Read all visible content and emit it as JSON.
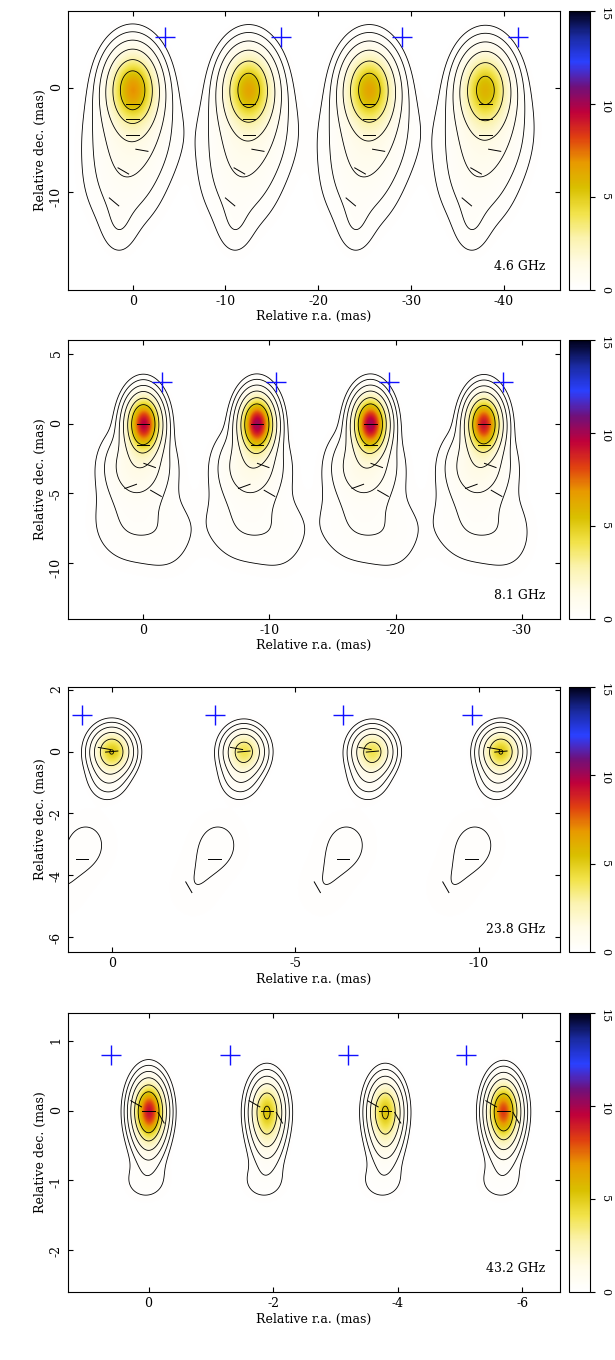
{
  "chart_data": {
    "type": "image",
    "xlabel": "Relative r.a. (mas)",
    "ylabel": "Relative dec. (mas)",
    "colorbar": {
      "lim": [
        0,
        15
      ],
      "ticks": [
        0,
        5,
        10,
        15
      ],
      "colors": [
        "#ffffff",
        "#fffbe6",
        "#fbf3b0",
        "#f2e34a",
        "#d9c000",
        "#e89a00",
        "#e04010",
        "#c0003a",
        "#70107a",
        "#2a40ff",
        "#1a2aa0",
        "#000018"
      ]
    },
    "contour_levels": [
      0.12,
      0.3,
      0.7,
      1.5,
      3,
      5
    ],
    "cross_color": "#1010ff",
    "panels": [
      {
        "label": "4.6 GHz",
        "xlim": [
          7,
          -46
        ],
        "ylim": [
          -19.5,
          7.5
        ],
        "xticks": [
          0,
          -10,
          -20,
          -30,
          -40
        ],
        "yticks": [
          -10,
          0
        ],
        "epoch_x": [
          0,
          -12.5,
          -25.5,
          -38
        ],
        "core_peaks": [
          6.5,
          6,
          6,
          5.5
        ],
        "core_size": [
          1.6,
          2.2
        ],
        "components": [
          [
            0,
            -4,
            2.5,
            3,
            1.0
          ],
          [
            1,
            -9,
            2.5,
            3,
            0.4
          ],
          [
            1.5,
            -13.5,
            1.2,
            1.8,
            0.18
          ]
        ],
        "cross": [
          -3.5,
          5
        ],
        "vectors": [
          [
            0,
            -1.5,
            0
          ],
          [
            0,
            -3,
            0
          ],
          [
            0,
            -4.5,
            0
          ],
          [
            -1,
            -6,
            10
          ],
          [
            1,
            -8,
            30
          ],
          [
            2,
            -11,
            40
          ]
        ]
      },
      {
        "label": "8.1 GHz",
        "xlim": [
          6,
          -33
        ],
        "ylim": [
          -14,
          6
        ],
        "xticks": [
          0,
          -10,
          -20,
          -30
        ],
        "yticks": [
          -10,
          -5,
          0,
          5
        ],
        "epoch_x": [
          0,
          -9,
          -18,
          -27
        ],
        "core_peaks": [
          9.5,
          10,
          10,
          9
        ],
        "core_size": [
          0.8,
          1.2
        ],
        "components": [
          [
            0.5,
            -3,
            1.5,
            1.5,
            1.2
          ],
          [
            1,
            -7,
            2,
            2,
            0.3
          ],
          [
            -2,
            -8,
            1.5,
            2,
            0.15
          ]
        ],
        "cross": [
          -1.5,
          3
        ],
        "vectors": [
          [
            0,
            0,
            0
          ],
          [
            0,
            -1.5,
            0
          ],
          [
            -0.5,
            -3,
            20
          ],
          [
            1,
            -4.5,
            -20
          ],
          [
            -1,
            -5,
            30
          ]
        ]
      },
      {
        "label": "23.8 GHz",
        "xlim": [
          1.2,
          -12.2
        ],
        "ylim": [
          -6.5,
          2.1
        ],
        "xticks": [
          0,
          -5,
          -10
        ],
        "yticks": [
          -6,
          -4,
          -2,
          0,
          2
        ],
        "epoch_x": [
          0,
          -3.6,
          -7.1,
          -10.6
        ],
        "core_peaks": [
          5,
          4,
          4,
          5
        ],
        "core_size": [
          0.3,
          0.4
        ],
        "components": [
          [
            0.1,
            -0.8,
            0.3,
            0.4,
            0.6
          ],
          [
            0.7,
            -3,
            0.6,
            0.8,
            0.15
          ],
          [
            1.4,
            -4.5,
            0.6,
            0.8,
            0.1
          ]
        ],
        "cross": [
          0.8,
          1.2
        ],
        "vectors": [
          [
            0,
            0,
            -5
          ],
          [
            0.2,
            0.1,
            10
          ],
          [
            0.8,
            -3.5,
            0
          ],
          [
            1.5,
            -4.4,
            60
          ]
        ]
      },
      {
        "label": "43.2 GHz",
        "xlim": [
          1.3,
          -6.6
        ],
        "ylim": [
          -2.6,
          1.4
        ],
        "xticks": [
          0,
          -2,
          -4,
          -6
        ],
        "yticks": [
          -2,
          -1,
          0,
          1
        ],
        "epoch_x": [
          0,
          -1.9,
          -3.8,
          -5.7
        ],
        "core_peaks": [
          9,
          5,
          5,
          8
        ],
        "core_size": [
          0.15,
          0.25
        ],
        "components": [
          [
            0,
            -0.4,
            0.15,
            0.25,
            1.0
          ],
          [
            0.05,
            -1.0,
            0.25,
            0.2,
            0.2
          ]
        ],
        "cross": [
          0.6,
          0.8
        ],
        "vectors": [
          [
            0,
            0,
            0
          ],
          [
            -0.2,
            -0.1,
            60
          ],
          [
            0.2,
            0.1,
            30
          ]
        ]
      }
    ]
  }
}
